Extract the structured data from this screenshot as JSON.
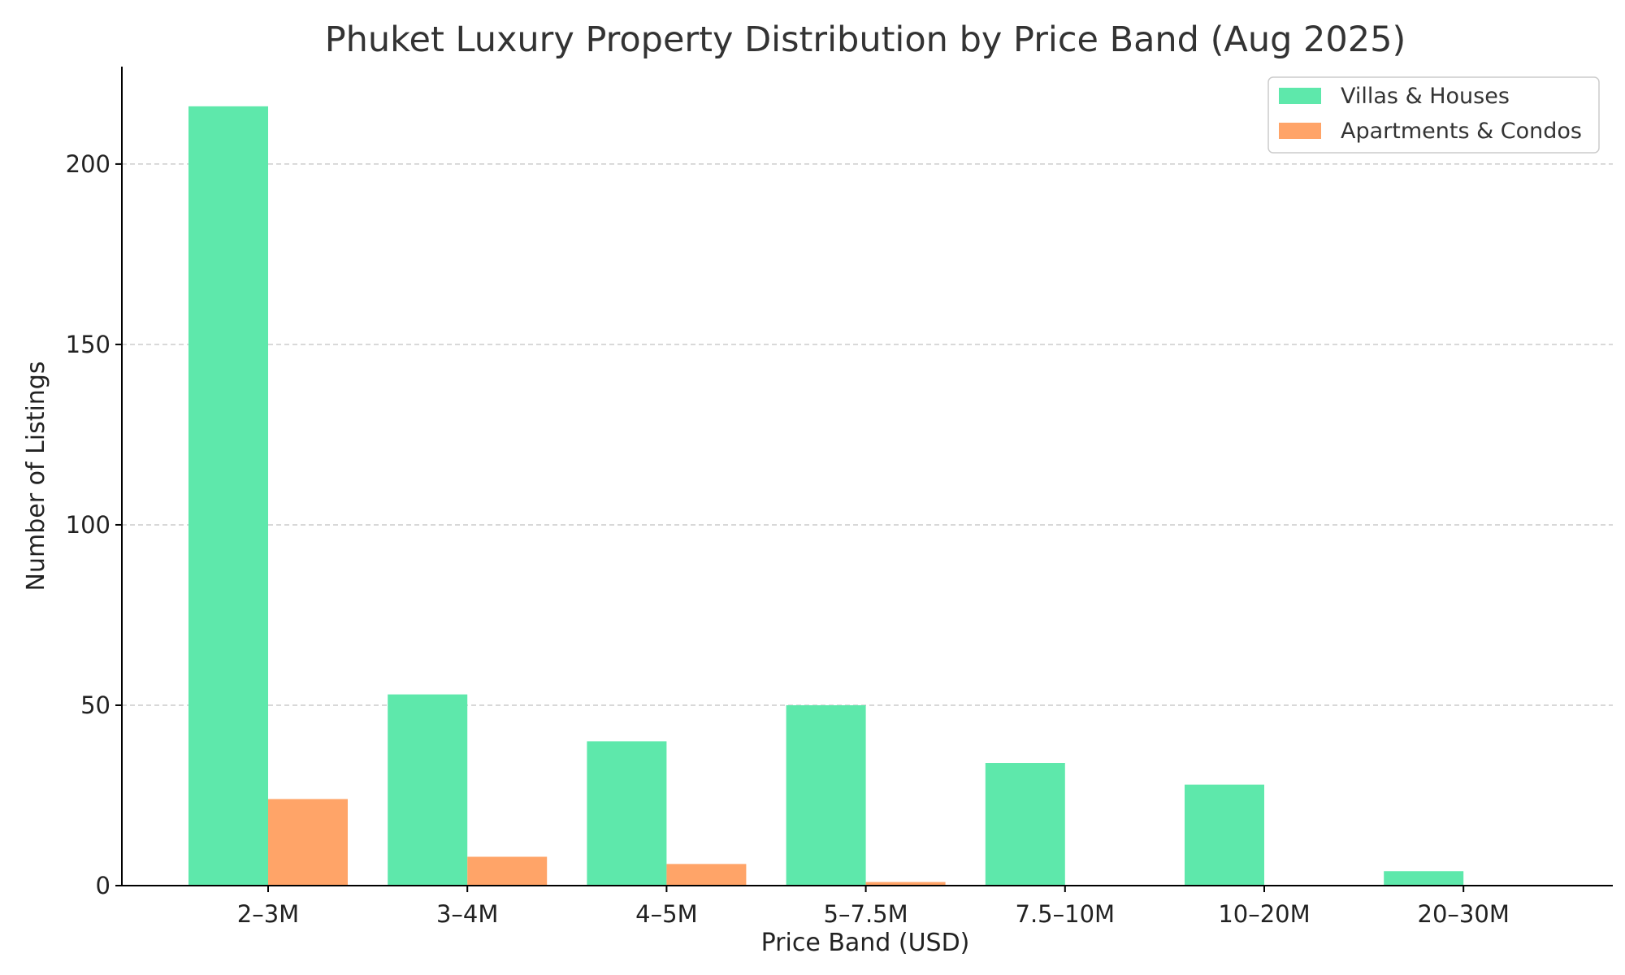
{
  "chart_data": {
    "type": "bar",
    "title": "Phuket Luxury Property Distribution by Price Band (Aug 2025)",
    "xlabel": "Price Band (USD)",
    "ylabel": "Number of Listings",
    "categories": [
      "2–3M",
      "3–4M",
      "4–5M",
      "5–7.5M",
      "7.5–10M",
      "10–20M",
      "20–30M"
    ],
    "series": [
      {
        "name": "Villas & Houses",
        "color": "#5ee8ab",
        "values": [
          216,
          53,
          40,
          50,
          34,
          28,
          4
        ]
      },
      {
        "name": "Apartments & Condos",
        "color": "#ffa468",
        "values": [
          24,
          8,
          6,
          1,
          0,
          0,
          0
        ]
      }
    ],
    "ylim": [
      0,
      227
    ],
    "yticks": [
      0,
      50,
      100,
      150,
      200
    ],
    "grid": "y-dashed",
    "legend": "top-right"
  }
}
